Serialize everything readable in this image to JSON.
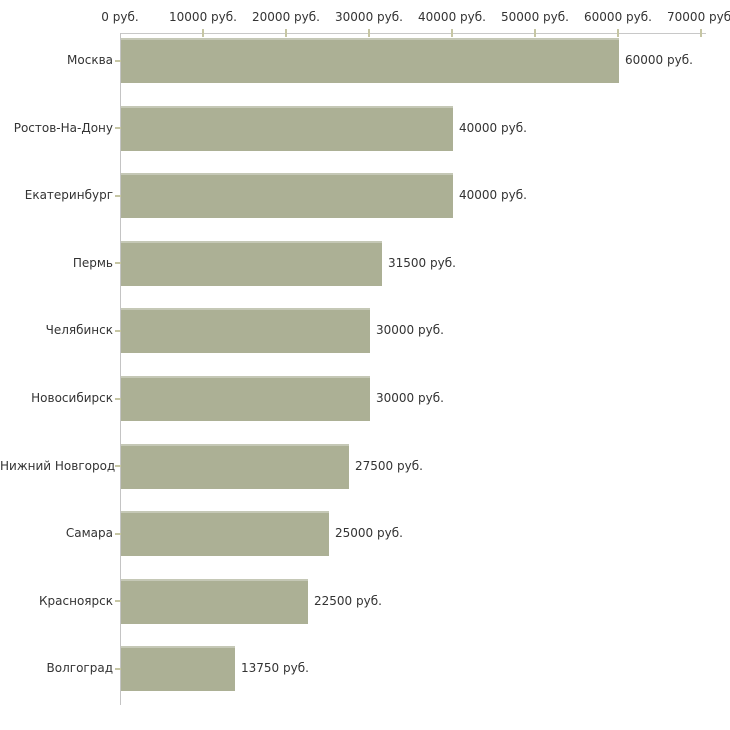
{
  "chart_data": {
    "type": "bar",
    "orientation": "horizontal",
    "title": "",
    "xlabel": "",
    "ylabel": "",
    "grid": false,
    "legend": false,
    "categories": [
      "Москва",
      "Ростов-На-Дону",
      "Екатеринбург",
      "Пермь",
      "Челябинск",
      "Новосибирск",
      "Нижний Новгород",
      "Самара",
      "Красноярск",
      "Волгоград"
    ],
    "values": [
      60000,
      40000,
      40000,
      31500,
      30000,
      30000,
      27500,
      25000,
      22500,
      13750
    ],
    "value_labels": [
      "60000 руб.",
      "40000 руб.",
      "40000 руб.",
      "31500 руб.",
      "30000 руб.",
      "30000 руб.",
      "27500 руб.",
      "25000 руб.",
      "22500 руб.",
      "13750 руб."
    ],
    "x_axis": {
      "min": 0,
      "max": 70000,
      "unit": "руб.",
      "ticks": [
        0,
        10000,
        20000,
        30000,
        40000,
        50000,
        60000,
        70000
      ],
      "tick_labels": [
        "0 руб.",
        "10000 руб.",
        "20000 руб.",
        "30000 руб.",
        "40000 руб.",
        "50000 руб.",
        "60000 руб.",
        "70000 руб."
      ]
    },
    "colors": {
      "bar_fill": "#acb095",
      "bar_edge": "#c5c8b6",
      "axis_line": "#c8c8c8",
      "tick_mark": "#c6c6a4",
      "text": "#333333",
      "background": "#ffffff"
    }
  }
}
